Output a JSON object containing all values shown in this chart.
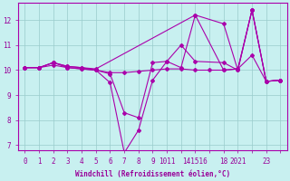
{
  "xlabel": "Windchill (Refroidissement éolien,°C)",
  "background_color": "#c8f0f0",
  "line_color": "#aa00aa",
  "grid_color": "#99cccc",
  "text_color": "#990099",
  "xlim": [
    -0.5,
    18.5
  ],
  "ylim": [
    6.8,
    12.7
  ],
  "yticks": [
    7,
    8,
    9,
    10,
    11,
    12
  ],
  "xtick_positions": [
    0,
    1,
    2,
    3,
    4,
    5,
    6,
    7,
    8,
    9,
    10,
    11,
    12,
    13,
    14,
    15,
    16,
    17,
    18
  ],
  "xtick_labels": [
    "0",
    "1",
    "2",
    "3",
    "4",
    "5",
    "6",
    "7",
    "8",
    "9",
    "1011",
    "",
    "141516",
    "",
    "18",
    "2021",
    "",
    "23",
    ""
  ],
  "lines": [
    {
      "x": [
        0,
        1,
        2,
        3,
        4,
        5,
        6,
        7,
        8,
        9,
        10,
        11,
        12,
        14,
        15,
        16,
        17,
        18
      ],
      "y": [
        10.1,
        10.1,
        10.3,
        10.15,
        10.1,
        10.0,
        9.5,
        6.7,
        7.6,
        9.6,
        10.35,
        10.1,
        12.2,
        11.85,
        10.0,
        12.4,
        9.55,
        9.6
      ]
    },
    {
      "x": [
        0,
        1,
        2,
        3,
        4,
        5,
        6,
        7,
        8,
        9,
        10,
        11,
        12,
        14,
        15,
        16,
        17,
        18
      ],
      "y": [
        10.1,
        10.1,
        10.3,
        10.1,
        10.05,
        10.0,
        9.85,
        8.3,
        8.1,
        10.3,
        10.35,
        11.0,
        10.35,
        10.3,
        10.0,
        12.4,
        9.55,
        9.6
      ]
    },
    {
      "x": [
        0,
        1,
        2,
        3,
        4,
        5,
        12,
        14,
        15,
        16,
        17,
        18
      ],
      "y": [
        10.1,
        10.1,
        10.3,
        10.15,
        10.1,
        10.05,
        12.2,
        10.0,
        10.05,
        12.4,
        9.55,
        9.6
      ]
    },
    {
      "x": [
        0,
        1,
        2,
        3,
        4,
        5,
        6,
        7,
        8,
        9,
        10,
        11,
        12,
        13,
        14,
        15,
        16,
        17,
        18
      ],
      "y": [
        10.1,
        10.1,
        10.2,
        10.1,
        10.05,
        10.0,
        9.9,
        9.9,
        9.95,
        10.0,
        10.05,
        10.05,
        10.0,
        10.0,
        10.0,
        10.05,
        10.6,
        9.55,
        9.6
      ]
    }
  ]
}
